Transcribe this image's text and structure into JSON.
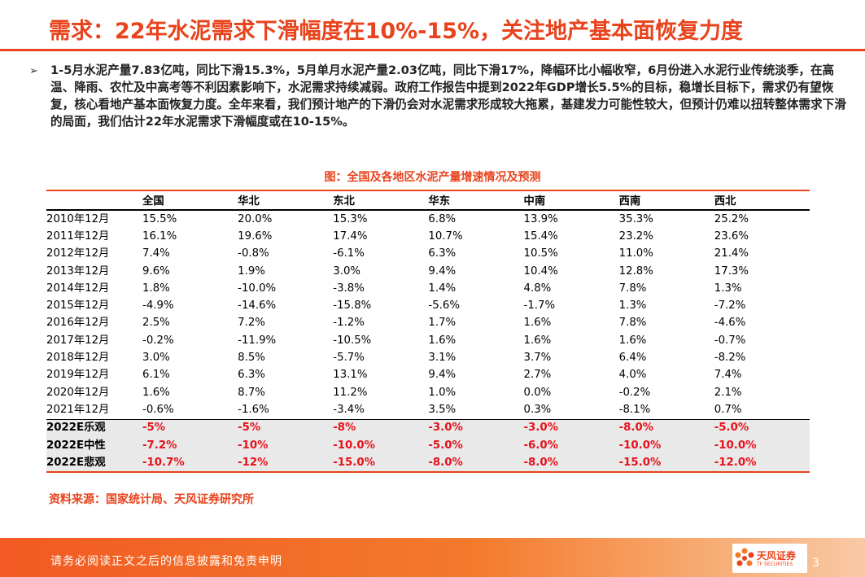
{
  "title": "需求：22年水泥需求下滑幅度在10%-15%，关注地产基本面恢复力度",
  "bullet": "1-5月水泥产量7.83亿吨，同比下滑15.3%，5月单月水泥产量2.03亿吨，同比下滑17%，降幅环比小幅收窄，6月份进入水泥行业传统淡季，在高温、降雨、农忙及中高考等不利因素影响下，水泥需求持续减弱。政府工作报告中提到2022年GDP增长5.5%的目标，稳增长目标下，需求仍有望恢复，核心看地产基本面恢复力度。全年来看，我们预计地产的下滑仍会对水泥需求形成较大拖累，基建发力可能性较大，但预计仍难以扭转整体需求下滑的局面，我们估计22年水泥需求下滑幅度或在10-15%。",
  "figure_caption": "图：全国及各地区水泥产量增速情况及预测",
  "table": {
    "headers": [
      "",
      "全国",
      "华北",
      "东北",
      "华东",
      "中南",
      "西南",
      "西北"
    ],
    "rows": [
      [
        "2010年12月",
        "15.5%",
        "20.0%",
        "15.3%",
        "6.8%",
        "13.9%",
        "35.3%",
        "25.2%"
      ],
      [
        "2011年12月",
        "16.1%",
        "19.6%",
        "17.4%",
        "10.7%",
        "15.4%",
        "23.2%",
        "23.6%"
      ],
      [
        "2012年12月",
        "7.4%",
        "-0.8%",
        "-6.1%",
        "6.3%",
        "10.5%",
        "11.0%",
        "21.4%"
      ],
      [
        "2013年12月",
        "9.6%",
        "1.9%",
        "3.0%",
        "9.4%",
        "10.4%",
        "12.8%",
        "17.3%"
      ],
      [
        "2014年12月",
        "1.8%",
        "-10.0%",
        "-3.8%",
        "1.4%",
        "4.8%",
        "7.8%",
        "1.3%"
      ],
      [
        "2015年12月",
        "-4.9%",
        "-14.6%",
        "-15.8%",
        "-5.6%",
        "-1.7%",
        "1.3%",
        "-7.2%"
      ],
      [
        "2016年12月",
        "2.5%",
        "7.2%",
        "-1.2%",
        "1.7%",
        "1.6%",
        "7.8%",
        "-4.6%"
      ],
      [
        "2017年12月",
        "-0.2%",
        "-11.9%",
        "-10.5%",
        "1.6%",
        "1.6%",
        "1.6%",
        "-0.7%"
      ],
      [
        "2018年12月",
        "3.0%",
        "8.5%",
        "-5.7%",
        "3.1%",
        "3.7%",
        "6.4%",
        "-8.2%"
      ],
      [
        "2019年12月",
        "6.1%",
        "6.3%",
        "13.1%",
        "9.4%",
        "2.7%",
        "4.0%",
        "7.4%"
      ],
      [
        "2020年12月",
        "1.6%",
        "8.7%",
        "11.2%",
        "1.0%",
        "0.0%",
        "-0.2%",
        "2.1%"
      ],
      [
        "2021年12月",
        "-0.6%",
        "-1.6%",
        "-3.4%",
        "3.5%",
        "0.3%",
        "-8.1%",
        "0.7%"
      ]
    ],
    "forecast_rows": [
      [
        "2022E乐观",
        "-5%",
        "-5%",
        "-8%",
        "-3.0%",
        "-3.0%",
        "-8.0%",
        "-5.0%"
      ],
      [
        "2022E中性",
        "-7.2%",
        "-10%",
        "-10.0%",
        "-5.0%",
        "-6.0%",
        "-10.0%",
        "-10.0%"
      ],
      [
        "2022E悲观",
        "-10.7%",
        "-12%",
        "-15.0%",
        "-8.0%",
        "-8.0%",
        "-15.0%",
        "-12.0%"
      ]
    ]
  },
  "source": "资料来源：国家统计局、天风证券研究所",
  "footer": {
    "disclaimer": "请务必阅读正文之后的信息披露和免责申明",
    "logo_cn": "天风证券",
    "logo_en": "TF SECURITIES",
    "page_number": "3"
  },
  "colors": {
    "accent": "#e8431c",
    "forecast_text": "#e8111a",
    "forecast_bg": "#e9e9e9"
  }
}
